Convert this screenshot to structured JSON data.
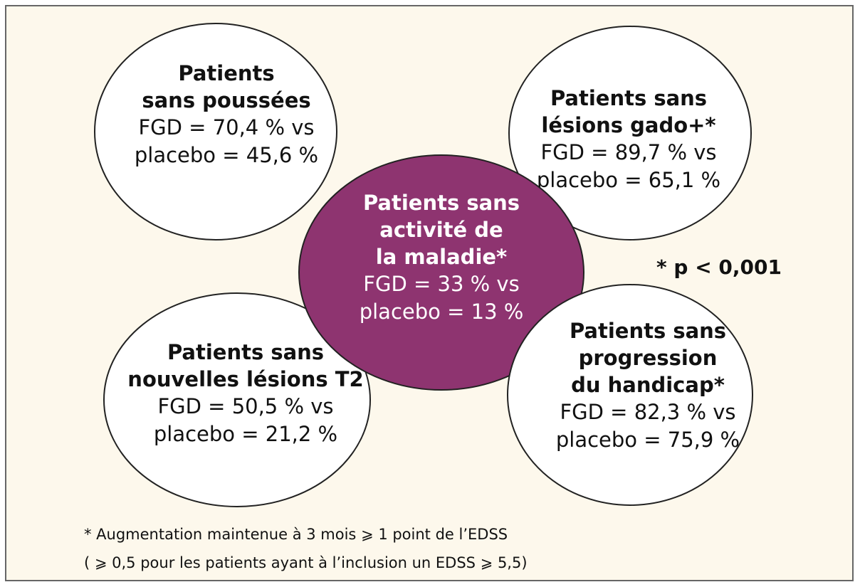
{
  "nodes": [
    {
      "title": [
        "Patients",
        "sans poussées"
      ],
      "stats": [
        "FGD = 70,4 % vs",
        "placebo = 45,6 %"
      ]
    },
    {
      "title": [
        "Patients sans",
        "lésions gado+*"
      ],
      "stats": [
        "FGD = 89,7 % vs",
        "placebo = 65,1 %"
      ]
    },
    {
      "title": [
        "Patients sans",
        "nouvelles lésions T2"
      ],
      "stats": [
        "FGD = 50,5 % vs",
        "placebo = 21,2 %"
      ]
    },
    {
      "title": [
        "Patients sans",
        "activité de",
        "la maladie*"
      ],
      "stats": [
        "FGD = 33 % vs",
        "placebo = 13 %"
      ]
    },
    {
      "title": [
        "Patients sans",
        "progression",
        "du handicap*"
      ],
      "stats": [
        "FGD = 82,3 % vs",
        "placebo = 75,9 %"
      ]
    }
  ],
  "significance": "* p < 0,001",
  "footnote": [
    "* Augmentation maintenue à 3 mois ⩾ 1 point de l’EDSS",
    "( ⩾ 0,5 pour les patients ayant à l’inclusion un EDSS  ⩾ 5,5)"
  ]
}
